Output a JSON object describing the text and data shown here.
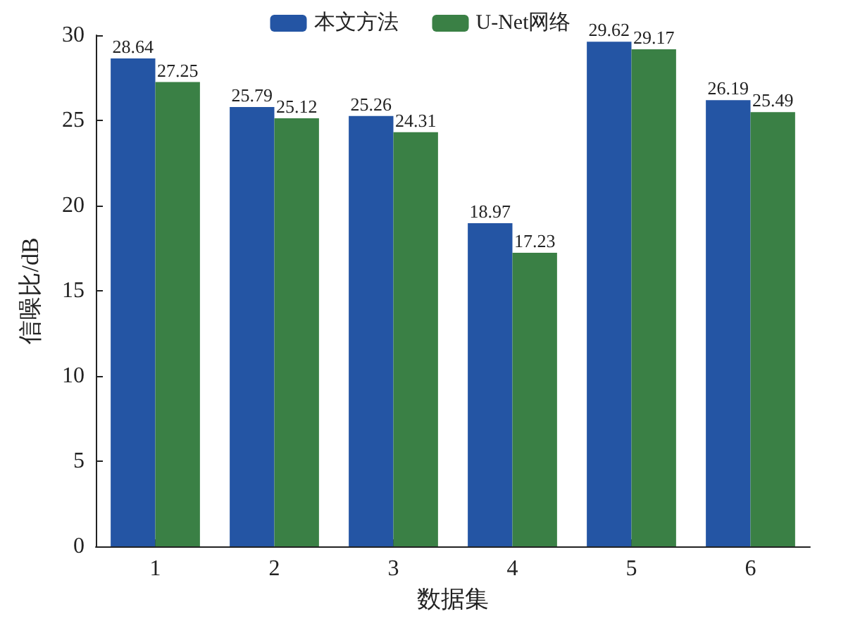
{
  "chart_data": {
    "type": "bar",
    "xlabel": "数据集",
    "ylabel": "信噪比/dB",
    "categories": [
      "1",
      "2",
      "3",
      "4",
      "5",
      "6"
    ],
    "series": [
      {
        "name": "本文方法",
        "color": "#2455a4",
        "values": [
          28.64,
          25.79,
          25.26,
          18.97,
          29.62,
          26.19
        ]
      },
      {
        "name": "U-Net网络",
        "color": "#3a8045",
        "values": [
          27.25,
          25.12,
          24.31,
          17.23,
          29.17,
          25.49
        ]
      }
    ],
    "ylim": [
      0,
      30
    ],
    "yticks": [
      0,
      5,
      10,
      15,
      20,
      25,
      30
    ],
    "data_labels": true,
    "grid": false,
    "legend": "top"
  }
}
